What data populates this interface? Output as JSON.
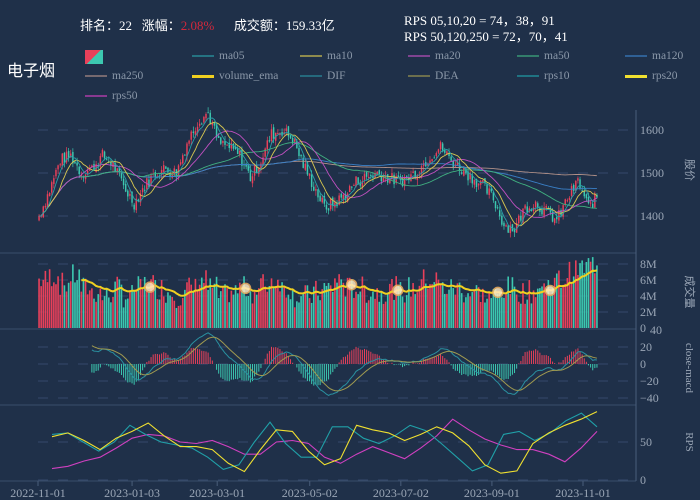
{
  "header": {
    "rank_label": "排名：",
    "rank": "22",
    "change_label": "涨幅：",
    "change": "2.08%",
    "turnover_label": "成交额：",
    "turnover": "159.33亿",
    "rps_short": "RPS 05,10,20 = 74，38，91",
    "rps_long": "RPS 50,120,250 = 72，70，41"
  },
  "title": "电子烟",
  "colors": {
    "background": "#1f3049",
    "up": "#e8405a",
    "down": "#3cc8b0",
    "ma05": "#2aa0a8",
    "ma10": "#d8c850",
    "ma20": "#c050c0",
    "ma50": "#40b080",
    "ma120": "#3a80c8",
    "ma250": "#b09088",
    "volume_ema": "#f0d020",
    "DIF": "#2a90a0",
    "DEA": "#a09a50",
    "rps10": "#20a0a8",
    "rps20": "#f0e030",
    "rps50": "#d040c0"
  },
  "legend": [
    {
      "key": "candle",
      "label": ""
    },
    {
      "key": "ma05",
      "label": "ma05"
    },
    {
      "key": "ma10",
      "label": "ma10"
    },
    {
      "key": "ma20",
      "label": "ma20"
    },
    {
      "key": "ma50",
      "label": "ma50"
    },
    {
      "key": "ma120",
      "label": "ma120"
    },
    {
      "key": "ma250",
      "label": "ma250"
    },
    {
      "key": "volume_ema",
      "label": "volume_ema"
    },
    {
      "key": "DIF",
      "label": "DIF"
    },
    {
      "key": "DEA",
      "label": "DEA"
    },
    {
      "key": "rps10",
      "label": "rps10"
    },
    {
      "key": "rps20",
      "label": "rps20"
    },
    {
      "key": "rps50",
      "label": "rps50"
    }
  ],
  "chart_data": {
    "type": "candlestick",
    "x_tick_labels": [
      "2022-11-01",
      "2023-01-03",
      "2023-03-01",
      "2023-05-02",
      "2023-07-02",
      "2023-09-01",
      "2023-11-01"
    ],
    "x_range": [
      "2022-11-01",
      "2023-11-01"
    ],
    "weekly_close": [
      1400,
      1460,
      1530,
      1540,
      1500,
      1510,
      1540,
      1520,
      1470,
      1430,
      1470,
      1500,
      1510,
      1500,
      1570,
      1620,
      1640,
      1570,
      1560,
      1540,
      1490,
      1530,
      1590,
      1600,
      1580,
      1520,
      1470,
      1420,
      1430,
      1450,
      1480,
      1490,
      1500,
      1490,
      1480,
      1490,
      1510,
      1540,
      1560,
      1530,
      1510,
      1490,
      1470,
      1440,
      1380,
      1370,
      1420,
      1430,
      1410,
      1390,
      1440,
      1480,
      1420,
      1450
    ],
    "weekly_volume_M": [
      6,
      6.5,
      5.5,
      6.5,
      5,
      4.5,
      4,
      5,
      4,
      5,
      5.5,
      5,
      4.5,
      4,
      5,
      6,
      5,
      4,
      4.5,
      5,
      4.5,
      5.5,
      6,
      5,
      4,
      4,
      4.5,
      5,
      6,
      5,
      5,
      4.5,
      4.5,
      5,
      4.5,
      5,
      6,
      6,
      5,
      5,
      4.5,
      4.5,
      4,
      4,
      5,
      4.5,
      4.5,
      5,
      5.5,
      6,
      7,
      7.5,
      8,
      8
    ],
    "volume_ema_markers": [
      "2023-01-15",
      "2023-03-20",
      "2023-05-30",
      "2023-06-30",
      "2023-09-05",
      "2023-10-10"
    ],
    "rps10": [
      60,
      62,
      50,
      38,
      50,
      72,
      60,
      50,
      46,
      42,
      30,
      14,
      20,
      50,
      76,
      48,
      30,
      30,
      70,
      70,
      55,
      48,
      58,
      72,
      65,
      48,
      30,
      12,
      20,
      60,
      64,
      52,
      62,
      78,
      88,
      70
    ],
    "rps20": [
      57,
      62,
      52,
      40,
      55,
      64,
      75,
      58,
      44,
      44,
      40,
      22,
      11,
      40,
      66,
      64,
      38,
      20,
      28,
      72,
      66,
      62,
      52,
      60,
      70,
      62,
      45,
      20,
      9,
      12,
      48,
      62,
      72,
      80,
      90
    ],
    "rps50": [
      15,
      18,
      25,
      30,
      42,
      55,
      60,
      58,
      50,
      48,
      52,
      44,
      34,
      34,
      50,
      52,
      48,
      30,
      22,
      34,
      44,
      36,
      28,
      42,
      58,
      80,
      66,
      54,
      46,
      40,
      40,
      34,
      24,
      42,
      64
    ],
    "panels": [
      {
        "name": "price",
        "ylabel": "股价",
        "ticks": [
          "1400",
          "1500",
          "1600"
        ],
        "ylim": [
          1320,
          1660
        ]
      },
      {
        "name": "volume",
        "ylabel": "成交量",
        "ticks": [
          "0",
          "2M",
          "4M",
          "6M",
          "8M"
        ],
        "ylim": [
          0,
          8
        ]
      },
      {
        "name": "macd",
        "ylabel": "close-macd",
        "ticks": [
          "40",
          "20",
          "0",
          "−20",
          "−40"
        ],
        "ylim": [
          -40,
          40
        ]
      },
      {
        "name": "rps",
        "ylabel": "RPS",
        "ticks": [
          "0",
          "50"
        ],
        "ylim": [
          0,
          100
        ]
      }
    ]
  }
}
